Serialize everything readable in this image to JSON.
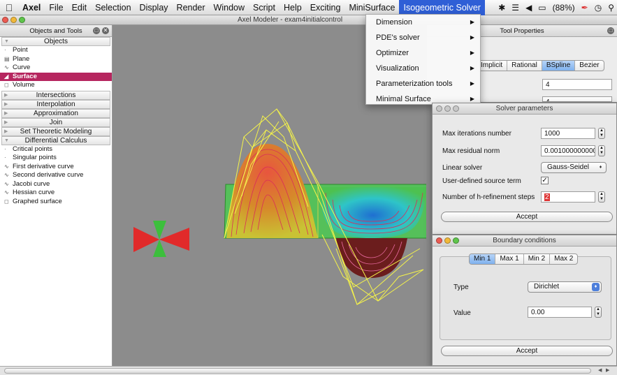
{
  "menubar": {
    "app": "Axel",
    "items": [
      "File",
      "Edit",
      "Selection",
      "Display",
      "Render",
      "Window",
      "Script",
      "Help",
      "Exciting",
      "MiniSurface"
    ],
    "active": "Isogeometric Solver",
    "battery": "(88%)"
  },
  "window": {
    "title": "Axel Modeler - exam4initialcontrol"
  },
  "objects_panel": {
    "title": "Objects and Tools",
    "sections": {
      "objects": "Objects",
      "intersections": "Intersections",
      "interpolation": "Interpolation",
      "approximation": "Approximation",
      "join": "Join",
      "set_theoretic": "Set Theoretic Modeling",
      "differential": "Differential Calculus"
    },
    "object_items": [
      "Point",
      "Plane",
      "Curve",
      "Surface",
      "Volume"
    ],
    "selected": "Surface",
    "diff_items": [
      "Critical points",
      "Singular points",
      "First derivative curve",
      "Second derivative curve",
      "Jacobi curve",
      "Hessian curve",
      "Graphed surface"
    ]
  },
  "solver_menu": {
    "items": [
      "Dimension",
      "PDE's solver",
      "Optimizer",
      "Visualization",
      "Parameterization tools",
      "Minimal Surface"
    ]
  },
  "tool_properties": {
    "title": "Tool Properties",
    "tabs": [
      "Implicit",
      "Rational",
      "BSpline",
      "Bezier"
    ],
    "active_tab": "BSpline",
    "field1": "4",
    "field2": "4"
  },
  "solver_params": {
    "title": "Solver parameters",
    "max_iter_label": "Max iterations number",
    "max_iter_value": "1000",
    "max_resid_label": "Max residual norm",
    "max_resid_value": "0.001000000000",
    "linear_solver_label": "Linear solver",
    "linear_solver_value": "Gauss-Seidel",
    "source_term_label": "User-defined source term",
    "source_term_checked": "✓",
    "h_refine_label": "Number of h-refinement steps",
    "h_refine_value": "2",
    "accept": "Accept"
  },
  "boundary": {
    "title": "Boundary conditions",
    "tabs": [
      "Min 1",
      "Max 1",
      "Min 2",
      "Max 2"
    ],
    "active_tab": "Min 1",
    "type_label": "Type",
    "type_value": "Dirichlet",
    "value_label": "Value",
    "value_value": "0.00",
    "accept": "Accept"
  },
  "colors": {
    "selection": "#b6265f",
    "menu_highlight": "#2f5fd6",
    "viewport_bg": "#8c8c8c",
    "surface_green": "#4dc150",
    "control_net": "#f4f24a"
  }
}
